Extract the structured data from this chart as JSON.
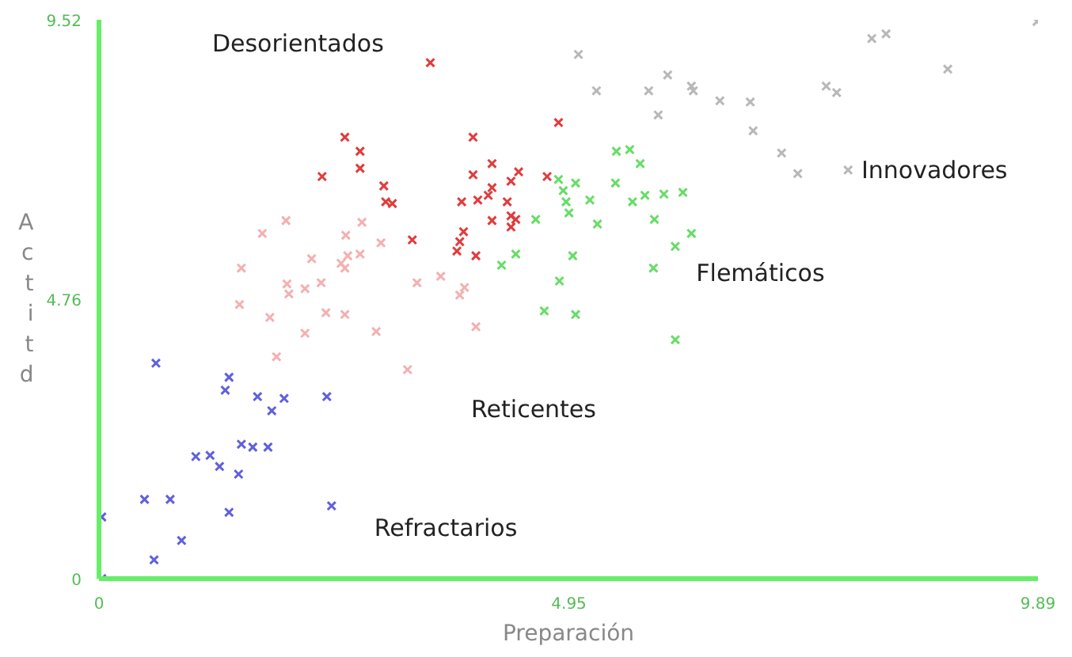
{
  "chart_data": {
    "type": "scatter",
    "xlabel": "Preparación",
    "ylabel": "Actitd",
    "xlim": [
      0,
      9.89
    ],
    "ylim": [
      0,
      9.52
    ],
    "xticks": [
      0,
      4.95,
      9.89
    ],
    "yticks": [
      0,
      4.76,
      9.52
    ],
    "grid": false,
    "marker": "cross",
    "series": [
      {
        "name": "Refractarios",
        "color": "#6060dd",
        "x": [
          0.6,
          1.37,
          1.33,
          1.67,
          1.95,
          1.82,
          2.4,
          1.5,
          1.62,
          1.78,
          1.02,
          1.17,
          1.27,
          1.47,
          0.48,
          0.75,
          1.37,
          2.45,
          0.87,
          0.58,
          0.03,
          0.03
        ],
        "values": [
          3.67,
          3.43,
          3.21,
          3.1,
          3.07,
          2.86,
          3.1,
          2.29,
          2.24,
          2.24,
          2.08,
          2.1,
          1.91,
          1.78,
          1.35,
          1.35,
          1.13,
          1.24,
          0.65,
          0.32,
          1.05,
          0.0
        ]
      },
      {
        "name": "Reticentes",
        "color": "#f4b0b0",
        "x": [
          1.97,
          1.72,
          2.6,
          2.77,
          2.97,
          1.5,
          2.24,
          2.62,
          2.75,
          2.55,
          2.59,
          1.98,
          2.17,
          2.34,
          2.0,
          1.48,
          1.8,
          2.39,
          2.59,
          3.35,
          3.6,
          3.85,
          3.8,
          3.97,
          2.92,
          2.17,
          1.87,
          3.25
        ],
        "values": [
          6.1,
          5.88,
          5.85,
          6.07,
          5.72,
          5.29,
          5.45,
          5.5,
          5.53,
          5.37,
          5.29,
          5.02,
          4.94,
          5.04,
          4.85,
          4.67,
          4.45,
          4.53,
          4.5,
          5.04,
          5.15,
          4.96,
          4.83,
          4.29,
          4.21,
          4.18,
          3.78,
          3.56
        ]
      },
      {
        "name": "Desorientados",
        "color": "#e03c3c",
        "x": [
          3.49,
          4.84,
          2.59,
          3.94,
          2.75,
          2.75,
          2.35,
          4.14,
          3.94,
          4.42,
          4.34,
          3.0,
          4.14,
          3.02,
          3.09,
          3.82,
          3.99,
          4.1,
          4.3,
          4.72,
          4.34,
          4.39,
          4.14,
          3.84,
          4.34,
          3.8,
          3.77,
          3.97,
          3.3
        ],
        "values": [
          8.79,
          7.77,
          7.52,
          7.52,
          7.28,
          6.99,
          6.85,
          7.07,
          6.88,
          6.93,
          6.77,
          6.69,
          6.66,
          6.42,
          6.39,
          6.42,
          6.45,
          6.53,
          6.42,
          6.85,
          6.18,
          6.12,
          6.1,
          5.91,
          5.99,
          5.74,
          5.58,
          5.5,
          5.77
        ]
      },
      {
        "name": "Flemáticos",
        "color": "#66dd66",
        "x": [
          5.45,
          5.59,
          5.7,
          4.84,
          5.02,
          5.44,
          4.89,
          5.17,
          4.92,
          5.62,
          5.75,
          5.95,
          6.15,
          4.95,
          5.85,
          5.25,
          4.6,
          6.24,
          6.07,
          4.39,
          4.24,
          4.99,
          5.84,
          4.85,
          4.69,
          5.02,
          6.07
        ],
        "values": [
          7.28,
          7.31,
          7.07,
          6.8,
          6.74,
          6.74,
          6.61,
          6.45,
          6.42,
          6.42,
          6.53,
          6.55,
          6.58,
          6.23,
          6.12,
          6.04,
          6.12,
          5.88,
          5.66,
          5.53,
          5.34,
          5.5,
          5.29,
          5.07,
          4.56,
          4.5,
          4.07
        ]
      },
      {
        "name": "Innovadores",
        "color": "#b8b8b8",
        "x": [
          5.05,
          5.24,
          5.79,
          5.99,
          6.24,
          6.26,
          6.54,
          6.86,
          5.89,
          6.89,
          7.19,
          7.36,
          7.89,
          7.66,
          7.77,
          8.14,
          8.29,
          8.94,
          9.88
        ],
        "values": [
          8.93,
          8.31,
          8.31,
          8.58,
          8.39,
          8.31,
          8.14,
          8.12,
          7.9,
          7.63,
          7.25,
          6.9,
          6.96,
          8.39,
          8.28,
          9.2,
          9.28,
          8.68,
          9.49
        ]
      }
    ]
  }
}
